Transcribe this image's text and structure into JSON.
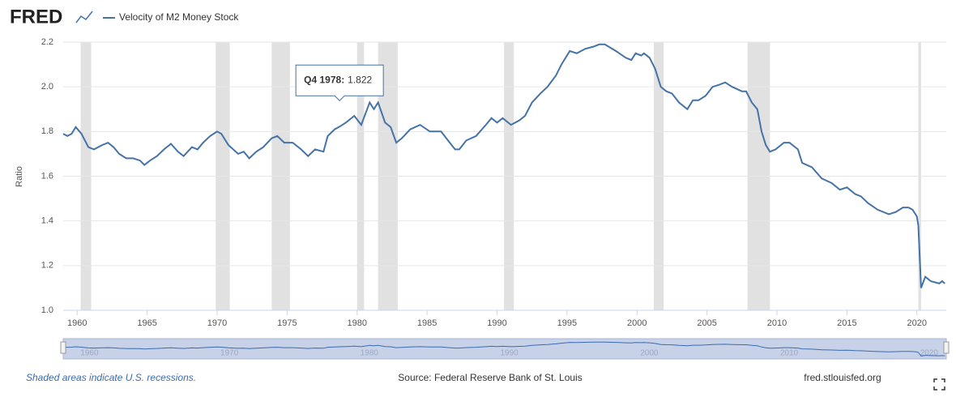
{
  "header": {
    "logo": "FRED"
  },
  "footer": {
    "note": "Shaded areas indicate U.S. recessions.",
    "source": "Source: Federal Reserve Bank of St. Louis",
    "site": "fred.stlouisfed.org"
  },
  "chart_data": {
    "type": "line",
    "y_label": "Ratio",
    "x": [
      1959.0,
      1959.3,
      1959.6,
      1959.9,
      1960.3,
      1960.8,
      1961.2,
      1961.8,
      1962.2,
      1962.6,
      1963.0,
      1963.5,
      1964.0,
      1964.5,
      1964.8,
      1965.2,
      1965.7,
      1966.2,
      1966.7,
      1967.2,
      1967.6,
      1968.2,
      1968.6,
      1969.0,
      1969.5,
      1970.0,
      1970.3,
      1970.8,
      1971.5,
      1971.9,
      1972.3,
      1972.8,
      1973.3,
      1973.9,
      1974.3,
      1974.8,
      1975.4,
      1976.0,
      1976.5,
      1977.0,
      1977.6,
      1977.9,
      1978.4,
      1978.75,
      1979.2,
      1979.8,
      1980.3,
      1980.9,
      1981.2,
      1981.5,
      1982.0,
      1982.4,
      1982.8,
      1983.2,
      1983.8,
      1984.5,
      1985.2,
      1986.0,
      1986.5,
      1987.0,
      1987.3,
      1987.8,
      1988.5,
      1989.2,
      1989.6,
      1990.0,
      1990.4,
      1991.0,
      1991.6,
      1992.0,
      1992.5,
      1993.1,
      1993.6,
      1994.2,
      1994.6,
      1995.2,
      1995.7,
      1996.3,
      1996.9,
      1997.3,
      1997.7,
      1998.5,
      1999.2,
      1999.6,
      1999.9,
      2000.3,
      2000.5,
      2000.9,
      2001.3,
      2001.7,
      2002.1,
      2002.5,
      2003.0,
      2003.6,
      2004.0,
      2004.4,
      2004.9,
      2005.4,
      2005.9,
      2006.3,
      2006.8,
      2007.5,
      2007.8,
      2008.2,
      2008.6,
      2008.9,
      2009.2,
      2009.5,
      2009.9,
      2010.5,
      2010.9,
      2011.5,
      2011.8,
      2012.5,
      2013.2,
      2013.9,
      2014.5,
      2015.0,
      2015.6,
      2016.0,
      2016.5,
      2017.2,
      2018.0,
      2018.5,
      2019.0,
      2019.4,
      2019.7,
      2020.0,
      2020.1,
      2020.3,
      2020.6,
      2021.0,
      2021.6,
      2021.8,
      2022.0
    ],
    "series": [
      {
        "name": "Velocity of M2 Money Stock",
        "color": "#4572a7",
        "values": [
          1.79,
          1.78,
          1.79,
          1.82,
          1.79,
          1.73,
          1.72,
          1.74,
          1.75,
          1.73,
          1.7,
          1.68,
          1.68,
          1.67,
          1.65,
          1.67,
          1.69,
          1.72,
          1.745,
          1.71,
          1.69,
          1.73,
          1.72,
          1.75,
          1.78,
          1.8,
          1.79,
          1.74,
          1.7,
          1.71,
          1.68,
          1.71,
          1.73,
          1.77,
          1.78,
          1.75,
          1.75,
          1.72,
          1.69,
          1.72,
          1.71,
          1.78,
          1.81,
          1.822,
          1.84,
          1.87,
          1.83,
          1.93,
          1.9,
          1.93,
          1.84,
          1.82,
          1.75,
          1.77,
          1.81,
          1.83,
          1.8,
          1.8,
          1.76,
          1.72,
          1.72,
          1.76,
          1.78,
          1.83,
          1.86,
          1.84,
          1.86,
          1.83,
          1.85,
          1.87,
          1.93,
          1.97,
          2.0,
          2.05,
          2.1,
          2.16,
          2.15,
          2.17,
          2.18,
          2.19,
          2.19,
          2.16,
          2.13,
          2.12,
          2.15,
          2.14,
          2.15,
          2.13,
          2.08,
          2.0,
          1.98,
          1.97,
          1.93,
          1.9,
          1.94,
          1.94,
          1.96,
          2.0,
          2.01,
          2.02,
          2.0,
          1.98,
          1.98,
          1.93,
          1.9,
          1.8,
          1.74,
          1.71,
          1.72,
          1.75,
          1.75,
          1.72,
          1.66,
          1.64,
          1.59,
          1.57,
          1.54,
          1.55,
          1.52,
          1.51,
          1.48,
          1.45,
          1.43,
          1.44,
          1.46,
          1.46,
          1.45,
          1.42,
          1.38,
          1.1,
          1.15,
          1.13,
          1.12,
          1.13,
          1.12
        ]
      }
    ],
    "recessions": [
      [
        1960.25,
        1961.0
      ],
      [
        1969.9,
        1970.9
      ],
      [
        1973.9,
        1975.2
      ],
      [
        1980.0,
        1980.5
      ],
      [
        1981.5,
        1982.9
      ],
      [
        1990.5,
        1991.2
      ],
      [
        2001.2,
        2001.9
      ],
      [
        2007.9,
        2009.5
      ],
      [
        2020.1,
        2020.3
      ]
    ],
    "recession_color": "#e1e1e1",
    "xlim": [
      1959,
      2022.1
    ],
    "xticks": [
      1960,
      1965,
      1970,
      1975,
      1980,
      1985,
      1990,
      1995,
      2000,
      2005,
      2010,
      2015,
      2020
    ],
    "ylim": [
      1.0,
      2.2
    ],
    "yticks": [
      {
        "value": 1.0,
        "label": "1.0"
      },
      1.2,
      1.4,
      1.6,
      1.8,
      {
        "value": 2.0,
        "label": "2.0"
      },
      2.2
    ],
    "grid": true,
    "navigator_ticks": [
      1960,
      1970,
      1980,
      1990,
      2000,
      2010,
      2020
    ],
    "tooltip": {
      "label": "Q4 1978:",
      "x": 1978.75,
      "value": 1.822
    }
  }
}
